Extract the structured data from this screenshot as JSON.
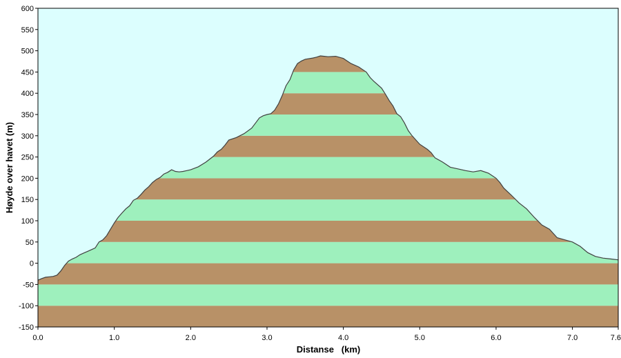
{
  "chart_data": {
    "type": "area",
    "xlabel": "Distanse   (km)",
    "ylabel": "Høyde over havet (m)",
    "xlim": [
      0,
      7.6
    ],
    "ylim": [
      -150,
      600
    ],
    "x_ticks": [
      "0.0",
      "1.0",
      "2.0",
      "3.0",
      "4.0",
      "5.0",
      "6.0",
      "7.0",
      "7.6"
    ],
    "y_ticks": [
      "600",
      "550",
      "500",
      "450",
      "400",
      "350",
      "300",
      "250",
      "200",
      "150",
      "100",
      "50",
      "0",
      "-50",
      "-100",
      "-150"
    ],
    "band_step": 50,
    "grid": false,
    "colors": {
      "sky": "#dcfefe",
      "band_light": "#9ef0bd",
      "band_dark": "#b89167",
      "line": "#404040"
    },
    "series": [
      {
        "x": [
          0.0,
          0.05,
          0.1,
          0.15,
          0.2,
          0.25,
          0.3,
          0.35,
          0.4,
          0.45,
          0.5,
          0.55,
          0.6,
          0.65,
          0.7,
          0.75,
          0.8,
          0.85,
          0.9,
          0.95,
          1.0,
          1.05,
          1.1,
          1.15,
          1.2,
          1.25,
          1.3,
          1.35,
          1.4,
          1.45,
          1.5,
          1.55,
          1.6,
          1.65,
          1.7,
          1.75,
          1.8,
          1.85,
          1.9,
          1.95,
          2.0,
          2.1,
          2.2,
          2.3,
          2.35,
          2.4,
          2.45,
          2.5,
          2.6,
          2.7,
          2.8,
          2.85,
          2.9,
          2.95,
          3.0,
          3.05,
          3.1,
          3.15,
          3.2,
          3.25,
          3.3,
          3.35,
          3.4,
          3.45,
          3.5,
          3.6,
          3.65,
          3.7,
          3.75,
          3.8,
          3.9,
          4.0,
          4.1,
          4.2,
          4.3,
          4.35,
          4.4,
          4.5,
          4.55,
          4.6,
          4.65,
          4.7,
          4.75,
          4.8,
          4.85,
          4.9,
          5.0,
          5.1,
          5.15,
          5.2,
          5.3,
          5.4,
          5.5,
          5.6,
          5.7,
          5.8,
          5.9,
          6.0,
          6.05,
          6.1,
          6.2,
          6.3,
          6.4,
          6.5,
          6.6,
          6.7,
          6.8,
          6.9,
          7.0,
          7.1,
          7.2,
          7.3,
          7.4,
          7.5,
          7.6
        ],
        "values": [
          -40,
          -36,
          -33,
          -32,
          -31,
          -28,
          -18,
          -5,
          5,
          10,
          14,
          20,
          24,
          28,
          32,
          36,
          50,
          55,
          65,
          80,
          95,
          108,
          118,
          128,
          135,
          148,
          153,
          162,
          172,
          180,
          190,
          197,
          202,
          210,
          214,
          220,
          216,
          215,
          216,
          218,
          220,
          227,
          238,
          252,
          262,
          268,
          278,
          290,
          296,
          305,
          318,
          330,
          342,
          347,
          350,
          352,
          360,
          375,
          395,
          418,
          432,
          455,
          470,
          476,
          480,
          483,
          485,
          488,
          487,
          486,
          487,
          482,
          470,
          462,
          450,
          437,
          428,
          412,
          398,
          383,
          370,
          352,
          345,
          330,
          312,
          300,
          280,
          268,
          260,
          248,
          238,
          226,
          222,
          218,
          215,
          218,
          212,
          200,
          190,
          177,
          160,
          142,
          128,
          108,
          90,
          80,
          60,
          55,
          50,
          40,
          25,
          16,
          12,
          10,
          8
        ]
      }
    ]
  }
}
